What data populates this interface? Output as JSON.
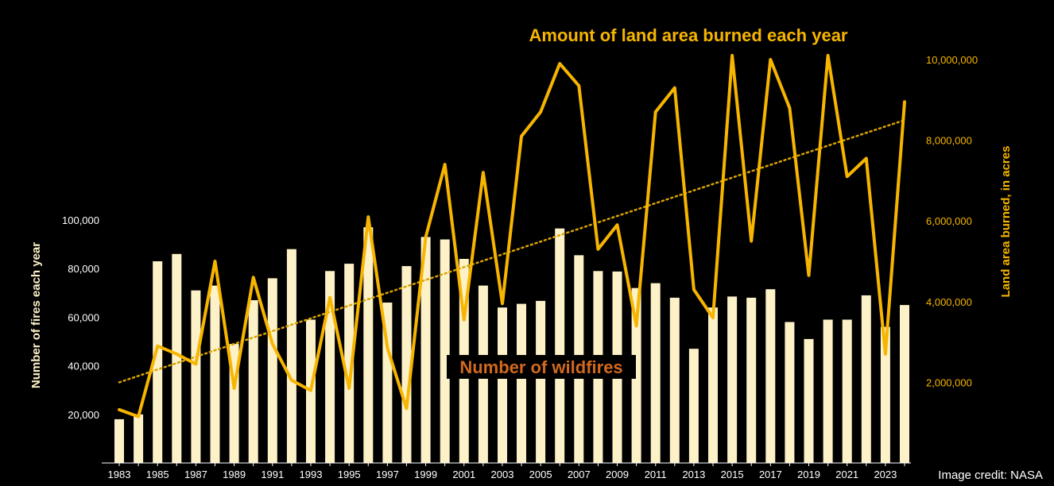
{
  "chart_data": {
    "type": "bar",
    "title": "Amount of land area burned each year",
    "annotation": "Number of wildfires",
    "credit": "Image credit: NASA",
    "ylabel_left": "Number of fires each year",
    "ylabel_right": "Land area burned, in acres",
    "years": [
      1983,
      1984,
      1985,
      1986,
      1987,
      1988,
      1989,
      1990,
      1991,
      1992,
      1993,
      1994,
      1995,
      1996,
      1997,
      1998,
      1999,
      2000,
      2001,
      2002,
      2003,
      2004,
      2005,
      2006,
      2007,
      2008,
      2009,
      2010,
      2011,
      2012,
      2013,
      2014,
      2015,
      2016,
      2017,
      2018,
      2019,
      2020,
      2021,
      2022,
      2023,
      2024
    ],
    "x_tick_labels": [
      "1983",
      "1985",
      "1987",
      "1989",
      "1991",
      "1993",
      "1995",
      "1997",
      "1999",
      "2001",
      "2003",
      "2005",
      "2007",
      "2009",
      "2011",
      "2013",
      "2015",
      "2017",
      "2019",
      "2021",
      "2023"
    ],
    "left_axis": {
      "min": 0,
      "max": 100000,
      "ticks": [
        20000,
        40000,
        60000,
        80000,
        100000
      ],
      "tick_labels": [
        "20,000",
        "40,000",
        "60,000",
        "80,000",
        "100,000"
      ]
    },
    "right_axis": {
      "min": 0,
      "max": 10000000,
      "ticks": [
        2000000,
        4000000,
        6000000,
        8000000,
        10000000
      ],
      "tick_labels": [
        "2,000,000",
        "4,000,000",
        "6,000,000",
        "8,000,000",
        "10,000,000"
      ]
    },
    "series": [
      {
        "name": "Number of wildfires",
        "kind": "bar",
        "color": "#fdf1c7",
        "values": [
          18000,
          20000,
          83000,
          86000,
          71000,
          73000,
          49000,
          67000,
          76000,
          88000,
          59000,
          79000,
          82000,
          97000,
          66000,
          81000,
          93000,
          92000,
          84000,
          73000,
          64000,
          65500,
          66700,
          96500,
          85500,
          79000,
          78800,
          72000,
          74000,
          68000,
          47000,
          64000,
          68500,
          68000,
          71500,
          58000,
          51000,
          59000,
          59000,
          69000,
          56000,
          65000
        ]
      },
      {
        "name": "Amount of land area burned each year",
        "kind": "line",
        "color": "#f7b500",
        "values": [
          1320000,
          1150000,
          2900000,
          2700000,
          2450000,
          5000000,
          1850000,
          4600000,
          2950000,
          2050000,
          1800000,
          4100000,
          1850000,
          6100000,
          2850000,
          1350000,
          5600000,
          7400000,
          3550000,
          7200000,
          3950000,
          8100000,
          8700000,
          9900000,
          9350000,
          5300000,
          5900000,
          3400000,
          8700000,
          9300000,
          4300000,
          3600000,
          10100000,
          5500000,
          10000000,
          8800000,
          4650000,
          10100000,
          7100000,
          7550000,
          2700000,
          8950000
        ]
      },
      {
        "name": "trend",
        "kind": "trendline",
        "color": "#d9a400",
        "start": 2000000,
        "end": 8500000
      }
    ]
  }
}
